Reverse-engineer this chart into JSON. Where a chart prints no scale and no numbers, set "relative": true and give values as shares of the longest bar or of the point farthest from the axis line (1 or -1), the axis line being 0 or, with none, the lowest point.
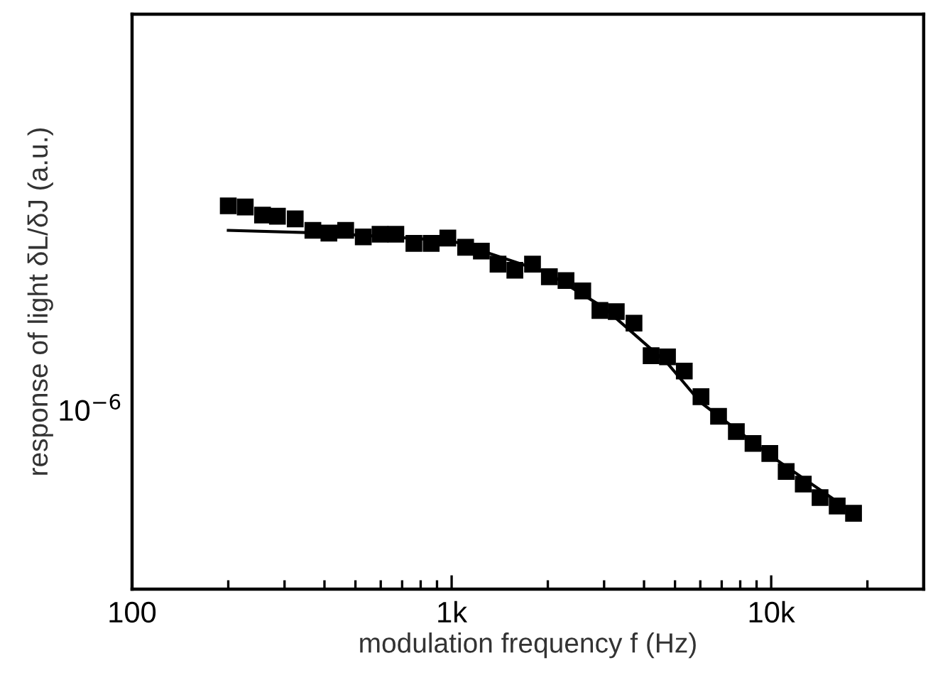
{
  "chart_data": {
    "type": "scatter",
    "xlabel": "modulation frequency f (Hz)",
    "ylabel": "response of light δL/δJ (a.u.)",
    "annotations": [
      "10$^{−6}$"
    ],
    "relative": true,
    "log": "x",
    "marker": "square",
    "grid": false,
    "legend": false,
    "xlim": [
      100,
      30000
    ],
    "xticks": [
      {
        "value": 100,
        "label": "100"
      },
      {
        "value": 200,
        "label": null
      },
      {
        "value": 300,
        "label": null
      },
      {
        "value": 400,
        "label": null
      },
      {
        "value": 500,
        "label": null
      },
      {
        "value": 600,
        "label": null
      },
      {
        "value": 700,
        "label": null
      },
      {
        "value": 800,
        "label": null
      },
      {
        "value": 900,
        "label": null
      },
      {
        "value": 1000,
        "label": "1k"
      },
      {
        "value": 2000,
        "label": null
      },
      {
        "value": 3000,
        "label": null
      },
      {
        "value": 4000,
        "label": null
      },
      {
        "value": 5000,
        "label": null
      },
      {
        "value": 6000,
        "label": null
      },
      {
        "value": 7000,
        "label": null
      },
      {
        "value": 8000,
        "label": null
      },
      {
        "value": 9000,
        "label": null
      },
      {
        "value": 10000,
        "label": "10k"
      },
      {
        "value": 20000,
        "label": null
      }
    ],
    "series": [
      {
        "color": "#000000",
        "x": [
          200,
          226,
          256,
          285,
          324,
          368,
          413,
          466,
          529,
          597,
          669,
          762,
          863,
          973,
          1106,
          1239,
          1397,
          1577,
          1791,
          2022,
          2280,
          2572,
          2911,
          3275,
          3721,
          4210,
          4737,
          5346,
          6030,
          6843,
          7780,
          8772,
          9900,
          11140,
          12600,
          14220,
          16090,
          18100
        ],
        "values": [
          1.0,
          0.997,
          0.976,
          0.973,
          0.966,
          0.936,
          0.929,
          0.936,
          0.919,
          0.926,
          0.926,
          0.902,
          0.902,
          0.916,
          0.892,
          0.882,
          0.848,
          0.832,
          0.848,
          0.815,
          0.805,
          0.778,
          0.727,
          0.724,
          0.694,
          0.609,
          0.606,
          0.569,
          0.502,
          0.451,
          0.411,
          0.38,
          0.354,
          0.307,
          0.274,
          0.239,
          0.217,
          0.198
        ]
      },
      {
        "type": "line",
        "color": "#000000",
        "line_style": "solid",
        "marker": "none",
        "x": [
          200,
          400,
          1000,
          2000,
          3000,
          4737,
          6000,
          10000,
          18100
        ],
        "values": [
          0.936,
          0.929,
          0.909,
          0.825,
          0.734,
          0.589,
          0.488,
          0.347,
          0.199
        ]
      }
    ]
  }
}
